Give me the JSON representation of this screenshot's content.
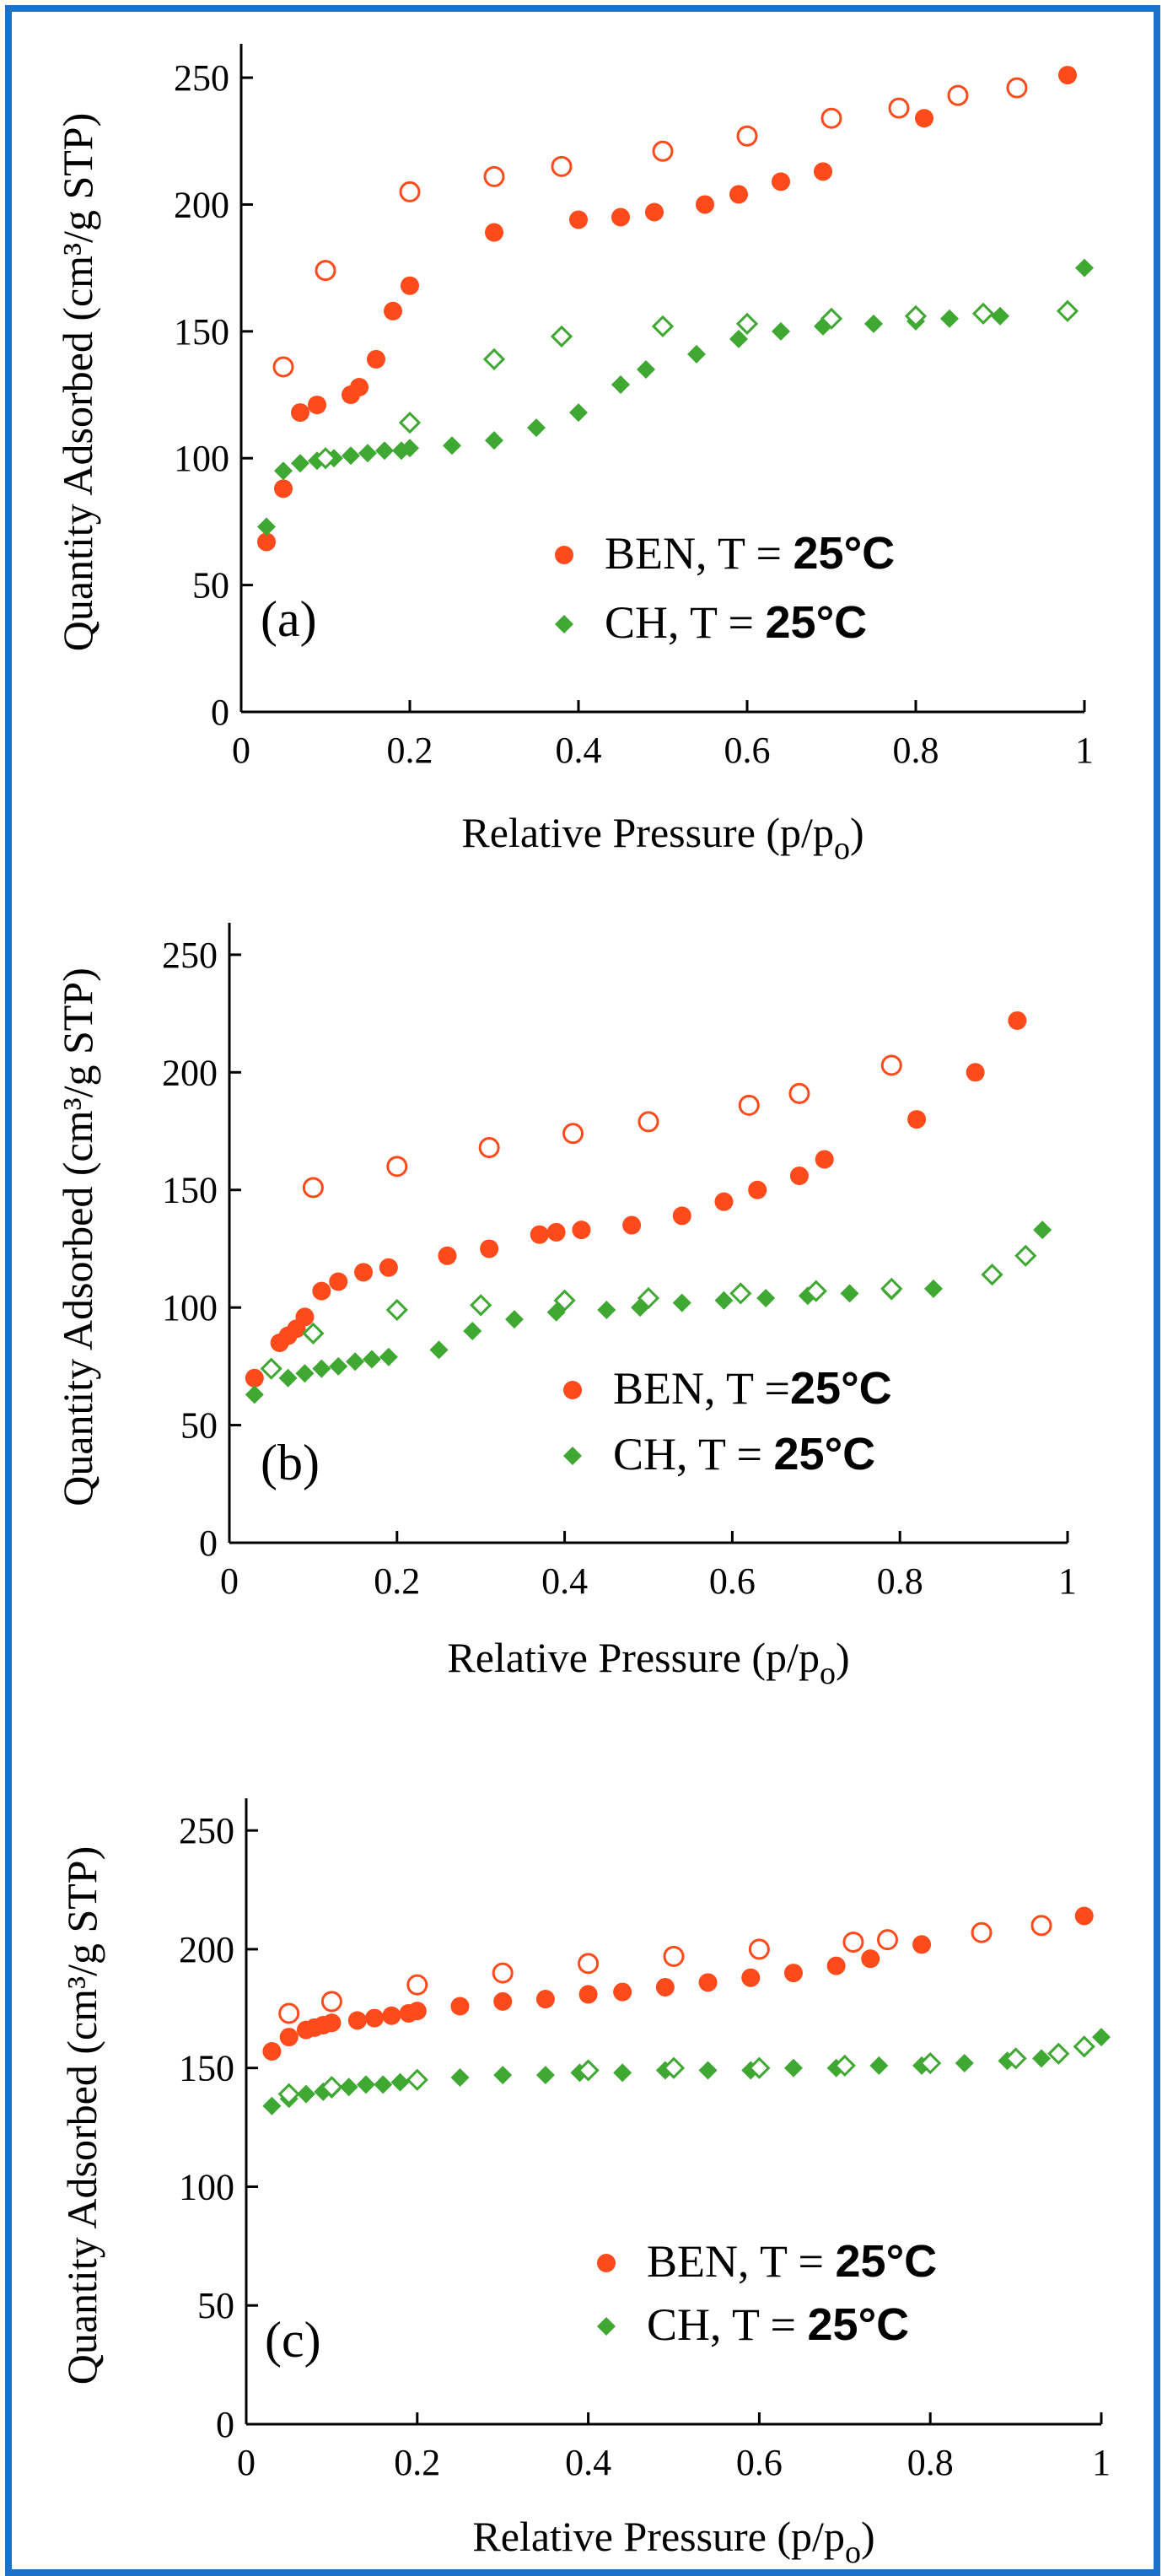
{
  "colors": {
    "frame": "#1a73c8",
    "ben": "#ff4a1c",
    "ch": "#3fa832"
  },
  "chart_data": [
    {
      "type": "scatter",
      "panel_label": "(a)",
      "xlabel_main": "Relative Pressure (p/p",
      "xlabel_sub": "o",
      "xlabel_end": ")",
      "ylabel": "Quantity Adsorbed (cm³/g STP)",
      "xlim": [
        0,
        1
      ],
      "ylim": [
        0,
        260
      ],
      "xticks": [
        "0",
        "0.2",
        "0.4",
        "0.6",
        "0.8",
        "1"
      ],
      "yticks": [
        "0",
        "50",
        "100",
        "150",
        "200",
        "250"
      ],
      "grid": false,
      "legend_position": "bottom-right",
      "series": [
        {
          "name": "BEN, T = ",
          "temp": "25°C",
          "marker": "filled-circle",
          "color": "#ff4a1c",
          "x": [
            0.03,
            0.05,
            0.07,
            0.09,
            0.13,
            0.14,
            0.16,
            0.18,
            0.2,
            0.3,
            0.4,
            0.45,
            0.49,
            0.55,
            0.59,
            0.64,
            0.69,
            0.81,
            0.98
          ],
          "y": [
            67,
            88,
            118,
            121,
            125,
            128,
            139,
            158,
            168,
            189,
            194,
            195,
            197,
            200,
            204,
            209,
            213,
            234,
            251
          ]
        },
        {
          "name": "",
          "marker": "open-circle",
          "color": "#ff4a1c",
          "x": [
            0.05,
            0.1,
            0.2,
            0.3,
            0.38,
            0.5,
            0.6,
            0.7,
            0.78,
            0.85,
            0.92
          ],
          "y": [
            136,
            174,
            205,
            211,
            215,
            221,
            227,
            234,
            238,
            243,
            246
          ]
        },
        {
          "name": "CH, T = ",
          "temp": "25°C",
          "marker": "filled-diamond",
          "color": "#3fa832",
          "x": [
            0.03,
            0.05,
            0.07,
            0.09,
            0.11,
            0.13,
            0.15,
            0.17,
            0.19,
            0.2,
            0.25,
            0.3,
            0.35,
            0.4,
            0.45,
            0.48,
            0.54,
            0.59,
            0.64,
            0.69,
            0.75,
            0.8,
            0.84,
            0.9,
            1.0
          ],
          "y": [
            73,
            95,
            98,
            99,
            100,
            101,
            102,
            103,
            103,
            104,
            105,
            107,
            112,
            118,
            129,
            135,
            141,
            147,
            150,
            152,
            153,
            154,
            155,
            156,
            175
          ]
        },
        {
          "name": "",
          "marker": "open-diamond",
          "color": "#3fa832",
          "x": [
            0.1,
            0.2,
            0.3,
            0.38,
            0.5,
            0.6,
            0.7,
            0.8,
            0.88,
            0.98
          ],
          "y": [
            100,
            114,
            139,
            148,
            152,
            153,
            155,
            156,
            157,
            158
          ]
        }
      ]
    },
    {
      "type": "scatter",
      "panel_label": "(b)",
      "xlabel_main": "Relative Pressure (p/p",
      "xlabel_sub": "o",
      "xlabel_end": ")",
      "ylabel": "Quantity Adsorbed (cm³/g STP)",
      "xlim": [
        0,
        1
      ],
      "ylim": [
        0,
        260
      ],
      "xticks": [
        "0",
        "0.2",
        "0.4",
        "0.6",
        "0.8",
        "1"
      ],
      "yticks": [
        "0",
        "50",
        "100",
        "150",
        "200",
        "250"
      ],
      "grid": false,
      "legend_position": "bottom-right",
      "series": [
        {
          "name": "BEN, T =",
          "temp": "25°C",
          "marker": "filled-circle",
          "color": "#ff4a1c",
          "x": [
            0.03,
            0.06,
            0.07,
            0.08,
            0.09,
            0.11,
            0.13,
            0.16,
            0.19,
            0.26,
            0.31,
            0.37,
            0.39,
            0.42,
            0.48,
            0.54,
            0.59,
            0.63,
            0.68,
            0.71,
            0.82,
            0.89,
            0.94
          ],
          "y": [
            70,
            85,
            88,
            91,
            96,
            107,
            111,
            115,
            117,
            122,
            125,
            131,
            132,
            133,
            135,
            139,
            145,
            150,
            156,
            163,
            180,
            200,
            222
          ]
        },
        {
          "name": "",
          "marker": "open-circle",
          "color": "#ff4a1c",
          "x": [
            0.1,
            0.2,
            0.31,
            0.41,
            0.5,
            0.62,
            0.68,
            0.79
          ],
          "y": [
            151,
            160,
            168,
            174,
            179,
            186,
            191,
            203
          ]
        },
        {
          "name": "CH, T = ",
          "temp": "25°C",
          "marker": "filled-diamond",
          "color": "#3fa832",
          "x": [
            0.03,
            0.07,
            0.09,
            0.11,
            0.13,
            0.15,
            0.17,
            0.19,
            0.25,
            0.29,
            0.34,
            0.39,
            0.45,
            0.49,
            0.54,
            0.59,
            0.64,
            0.69,
            0.74,
            0.79,
            0.84,
            0.97
          ],
          "y": [
            63,
            70,
            72,
            74,
            75,
            77,
            78,
            79,
            82,
            90,
            95,
            98,
            99,
            100,
            102,
            103,
            104,
            105,
            106,
            107,
            108,
            133
          ]
        },
        {
          "name": "",
          "marker": "open-diamond",
          "color": "#3fa832",
          "x": [
            0.05,
            0.1,
            0.2,
            0.3,
            0.4,
            0.5,
            0.61,
            0.7,
            0.79,
            0.91,
            0.95
          ],
          "y": [
            74,
            89,
            99,
            101,
            103,
            104,
            106,
            107,
            108,
            114,
            122
          ]
        }
      ]
    },
    {
      "type": "scatter",
      "panel_label": "(c)",
      "xlabel_main": "Relative Pressure (p/p",
      "xlabel_sub": "o",
      "xlabel_end": ")",
      "ylabel": "Quantity Adsorbed (cm³/g STP)",
      "xlim": [
        0,
        1
      ],
      "ylim": [
        0,
        260
      ],
      "xticks": [
        "0",
        "0.2",
        "0.4",
        "0.6",
        "0.8",
        "1"
      ],
      "yticks": [
        "0",
        "50",
        "100",
        "150",
        "200",
        "250"
      ],
      "grid": false,
      "legend_position": "bottom-right",
      "series": [
        {
          "name": "BEN, T = ",
          "temp": "25°C",
          "marker": "filled-circle",
          "color": "#ff4a1c",
          "x": [
            0.03,
            0.05,
            0.07,
            0.08,
            0.09,
            0.1,
            0.13,
            0.15,
            0.17,
            0.19,
            0.2,
            0.25,
            0.3,
            0.35,
            0.4,
            0.44,
            0.49,
            0.54,
            0.59,
            0.64,
            0.69,
            0.73,
            0.79,
            0.98
          ],
          "y": [
            157,
            163,
            166,
            167,
            168,
            169,
            170,
            171,
            172,
            173,
            174,
            176,
            178,
            179,
            181,
            182,
            184,
            186,
            188,
            190,
            193,
            196,
            202,
            214
          ]
        },
        {
          "name": "",
          "marker": "open-circle",
          "color": "#ff4a1c",
          "x": [
            0.05,
            0.1,
            0.2,
            0.3,
            0.4,
            0.5,
            0.6,
            0.71,
            0.75,
            0.86,
            0.93
          ],
          "y": [
            173,
            178,
            185,
            190,
            194,
            197,
            200,
            203,
            204,
            207,
            210
          ]
        },
        {
          "name": "CH, T = ",
          "temp": "25°C",
          "marker": "filled-diamond",
          "color": "#3fa832",
          "x": [
            0.03,
            0.05,
            0.07,
            0.09,
            0.1,
            0.12,
            0.14,
            0.16,
            0.18,
            0.2,
            0.25,
            0.3,
            0.35,
            0.39,
            0.44,
            0.49,
            0.54,
            0.59,
            0.64,
            0.69,
            0.74,
            0.79,
            0.84,
            0.89,
            0.93,
            1.0
          ],
          "y": [
            134,
            137,
            139,
            140,
            141,
            142,
            143,
            143,
            144,
            145,
            146,
            147,
            147,
            148,
            148,
            149,
            149,
            149,
            150,
            150,
            151,
            151,
            152,
            153,
            154,
            163
          ]
        },
        {
          "name": "",
          "marker": "open-diamond",
          "color": "#3fa832",
          "x": [
            0.05,
            0.1,
            0.2,
            0.4,
            0.5,
            0.6,
            0.7,
            0.8,
            0.9,
            0.95,
            0.98
          ],
          "y": [
            139,
            142,
            145,
            149,
            150,
            150,
            151,
            152,
            154,
            156,
            159
          ]
        }
      ]
    }
  ]
}
